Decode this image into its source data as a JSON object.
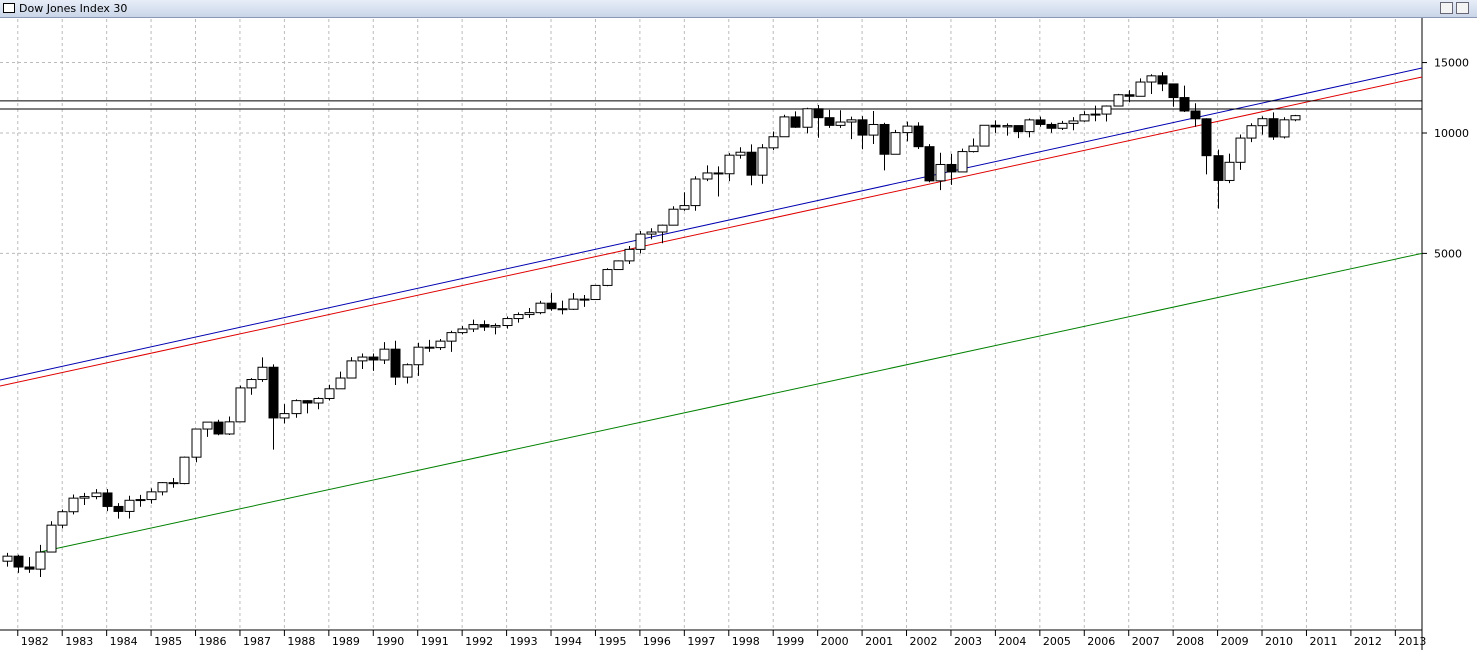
{
  "chart_data": {
    "type": "candlestick",
    "title": "Dow Jones Index 30",
    "log_scale": true,
    "grid": true,
    "up_color": "#ffffff",
    "down_color": "#000000",
    "xlim": [
      1981.6,
      2013.6
    ],
    "xticks": [
      1982,
      1983,
      1984,
      1985,
      1986,
      1987,
      1988,
      1989,
      1990,
      1991,
      1992,
      1993,
      1994,
      1995,
      1996,
      1997,
      1998,
      1999,
      2000,
      2001,
      2002,
      2003,
      2004,
      2005,
      2006,
      2007,
      2008,
      2009,
      2010,
      2011,
      2012,
      2013
    ],
    "ylim": [
      572,
      19275
    ],
    "yticks": [
      5000,
      10000,
      15000
    ],
    "x": [
      1981.75,
      1982,
      1982.25,
      1982.5,
      1982.75,
      1983,
      1983.25,
      1983.5,
      1983.75,
      1984,
      1984.25,
      1984.5,
      1984.75,
      1985,
      1985.25,
      1985.5,
      1985.75,
      1986,
      1986.25,
      1986.5,
      1986.75,
      1987,
      1987.25,
      1987.5,
      1987.75,
      1988,
      1988.25,
      1988.5,
      1988.75,
      1989,
      1989.25,
      1989.5,
      1989.75,
      1990,
      1990.25,
      1990.5,
      1990.75,
      1991,
      1991.25,
      1991.5,
      1991.75,
      1992,
      1992.25,
      1992.5,
      1992.75,
      1993,
      1993.25,
      1993.5,
      1993.75,
      1994,
      1994.25,
      1994.5,
      1994.75,
      1995,
      1995.25,
      1995.5,
      1995.75,
      1996,
      1996.25,
      1996.5,
      1996.75,
      1997,
      1997.25,
      1997.5,
      1997.75,
      1998,
      1998.25,
      1998.5,
      1998.75,
      1999,
      1999.25,
      1999.5,
      1999.75,
      2000,
      2000.25,
      2000.5,
      2000.75,
      2001,
      2001.25,
      2001.5,
      2001.75,
      2002,
      2002.25,
      2002.5,
      2002.75,
      2003,
      2003.25,
      2003.5,
      2003.75,
      2004,
      2004.25,
      2004.5,
      2004.75,
      2005,
      2005.25,
      2005.5,
      2005.75,
      2006,
      2006.25,
      2006.5,
      2006.75,
      2007,
      2007.25,
      2007.5,
      2007.75,
      2008,
      2008.25,
      2008.5,
      2008.75,
      2009,
      2009.25,
      2009.5,
      2009.75,
      2010,
      2010.25,
      2010.5,
      2010.75
    ],
    "open": [
      850,
      875,
      822,
      812,
      896,
      1046,
      1130,
      1222,
      1233,
      1259,
      1165,
      1132,
      1207,
      1212,
      1267,
      1336,
      1329,
      1547,
      1819,
      1893,
      1768,
      1896,
      2305,
      2419,
      2596,
      1939,
      1988,
      2142,
      2113,
      2169,
      2293,
      2440,
      2693,
      2753,
      2707,
      2881,
      2453,
      2634,
      2914,
      2907,
      3017,
      3169,
      3236,
      3319,
      3272,
      3301,
      3436,
      3516,
      3555,
      3754,
      3636,
      3625,
      3843,
      3834,
      4158,
      4556,
      4789,
      5117,
      5588,
      5655,
      5882,
      6448,
      6584,
      7673,
      7945,
      7908,
      8800,
      8952,
      7843,
      9181,
      9786,
      10971,
      10337,
      11497,
      10922,
      10448,
      10651,
      10787,
      9879,
      10502,
      8848,
      10022,
      10404,
      9243,
      7592,
      8342,
      7992,
      8985,
      9275,
      10454,
      10358,
      10435,
      10080,
      10783,
      10504,
      10275,
      10569,
      10718,
      11109,
      11150,
      11679,
      12463,
      12354,
      13409,
      13896,
      13265,
      12263,
      11350,
      10851,
      8776,
      7609,
      8447,
      9712,
      10428,
      10857,
      9774,
      10788
    ],
    "high": [
      892,
      882,
      870,
      934,
      1070,
      1145,
      1248,
      1260,
      1287,
      1287,
      1187,
      1239,
      1245,
      1293,
      1340,
      1372,
      1553,
      1822,
      1893,
      1919,
      1955,
      2335,
      2438,
      2747,
      2640,
      2100,
      2158,
      2148,
      2184,
      2348,
      2532,
      2752,
      2810,
      2810,
      3000,
      3024,
      2654,
      2989,
      3040,
      3055,
      3204,
      3290,
      3414,
      3400,
      3342,
      3478,
      3560,
      3652,
      3804,
      3986,
      3811,
      3978,
      3936,
      4172,
      4590,
      4802,
      5216,
      5690,
      5778,
      5906,
      6561,
      7112,
      7796,
      8300,
      8250,
      8906,
      9211,
      9367,
      9380,
      10085,
      11107,
      11326,
      11568,
      11750,
      11425,
      11401,
      10986,
      11019,
      11350,
      10610,
      10184,
      10673,
      10635,
      9380,
      8926,
      8869,
      9137,
      9686,
      10462,
      10753,
      10570,
      10437,
      10868,
      10984,
      10623,
      10720,
      10959,
      11335,
      11709,
      11727,
      12529,
      12795,
      13692,
      14022,
      14198,
      13279,
      13136,
      11867,
      10882,
      9088,
      8877,
      9917,
      10580,
      11005,
      11258,
      10948,
      11100
    ],
    "low": [
      824,
      795,
      795,
      776,
      896,
      1027,
      1113,
      1175,
      1214,
      1134,
      1086,
      1087,
      1163,
      1184,
      1242,
      1297,
      1324,
      1502,
      1739,
      1755,
      1758,
      1895,
      2216,
      2386,
      1616,
      1879,
      1941,
      1990,
      2038,
      2144,
      2293,
      2433,
      2570,
      2543,
      2645,
      2344,
      2365,
      2470,
      2837,
      2867,
      2836,
      3136,
      3181,
      3200,
      3137,
      3242,
      3356,
      3449,
      3521,
      3593,
      3520,
      3612,
      3674,
      3832,
      4138,
      4544,
      4703,
      5000,
      5423,
      5300,
      5873,
      6390,
      6391,
      7580,
      6937,
      7580,
      8627,
      7400,
      7467,
      9063,
      9786,
      10300,
      9976,
      9731,
      10300,
      10300,
      9654,
      9106,
      9389,
      8062,
      8836,
      9529,
      9120,
      7532,
      7197,
      7416,
      7992,
      8936,
      9275,
      10007,
      9852,
      9708,
      9750,
      10368,
      10013,
      10176,
      10156,
      10661,
      10700,
      10683,
      11670,
      11939,
      12354,
      12517,
      12725,
      11634,
      11288,
      10365,
      7882,
      6470,
      7493,
      8087,
      9487,
      9908,
      9614,
      9686,
      10700
    ],
    "close": [
      875,
      822,
      812,
      896,
      1046,
      1130,
      1222,
      1233,
      1259,
      1165,
      1132,
      1207,
      1212,
      1267,
      1336,
      1329,
      1547,
      1819,
      1893,
      1768,
      1896,
      2305,
      2419,
      2596,
      1939,
      1988,
      2142,
      2113,
      2169,
      2293,
      2440,
      2693,
      2753,
      2707,
      2881,
      2453,
      2634,
      2914,
      2907,
      3017,
      3169,
      3236,
      3319,
      3272,
      3301,
      3436,
      3516,
      3555,
      3754,
      3636,
      3625,
      3843,
      3834,
      4158,
      4556,
      4789,
      5117,
      5588,
      5655,
      5882,
      6448,
      6584,
      7673,
      7945,
      7908,
      8800,
      8952,
      7843,
      9181,
      9786,
      10971,
      10337,
      11497,
      10922,
      10448,
      10651,
      10787,
      9879,
      10502,
      8848,
      10022,
      10404,
      9243,
      7592,
      8342,
      7992,
      8985,
      9275,
      10454,
      10358,
      10435,
      10080,
      10783,
      10504,
      10275,
      10569,
      10718,
      11109,
      11150,
      11679,
      12463,
      12354,
      13409,
      13896,
      13265,
      12263,
      11350,
      10851,
      8776,
      7609,
      8447,
      9712,
      10428,
      10857,
      9774,
      10788,
      11050
    ],
    "lines": [
      {
        "color": "#0000b0",
        "x": [
          1981.6,
          2013.6
        ],
        "values": [
          2413,
          14540
        ]
      },
      {
        "color": "#e00000",
        "x": [
          1981.6,
          2013.6
        ],
        "values": [
          2330,
          13804
        ]
      },
      {
        "color": "#008000",
        "x": [
          1982.5,
          2013.6
        ],
        "values": [
          896,
          5000
        ]
      }
    ],
    "hlines": {
      "color": "#000000",
      "values": [
        12030,
        11480
      ]
    }
  }
}
